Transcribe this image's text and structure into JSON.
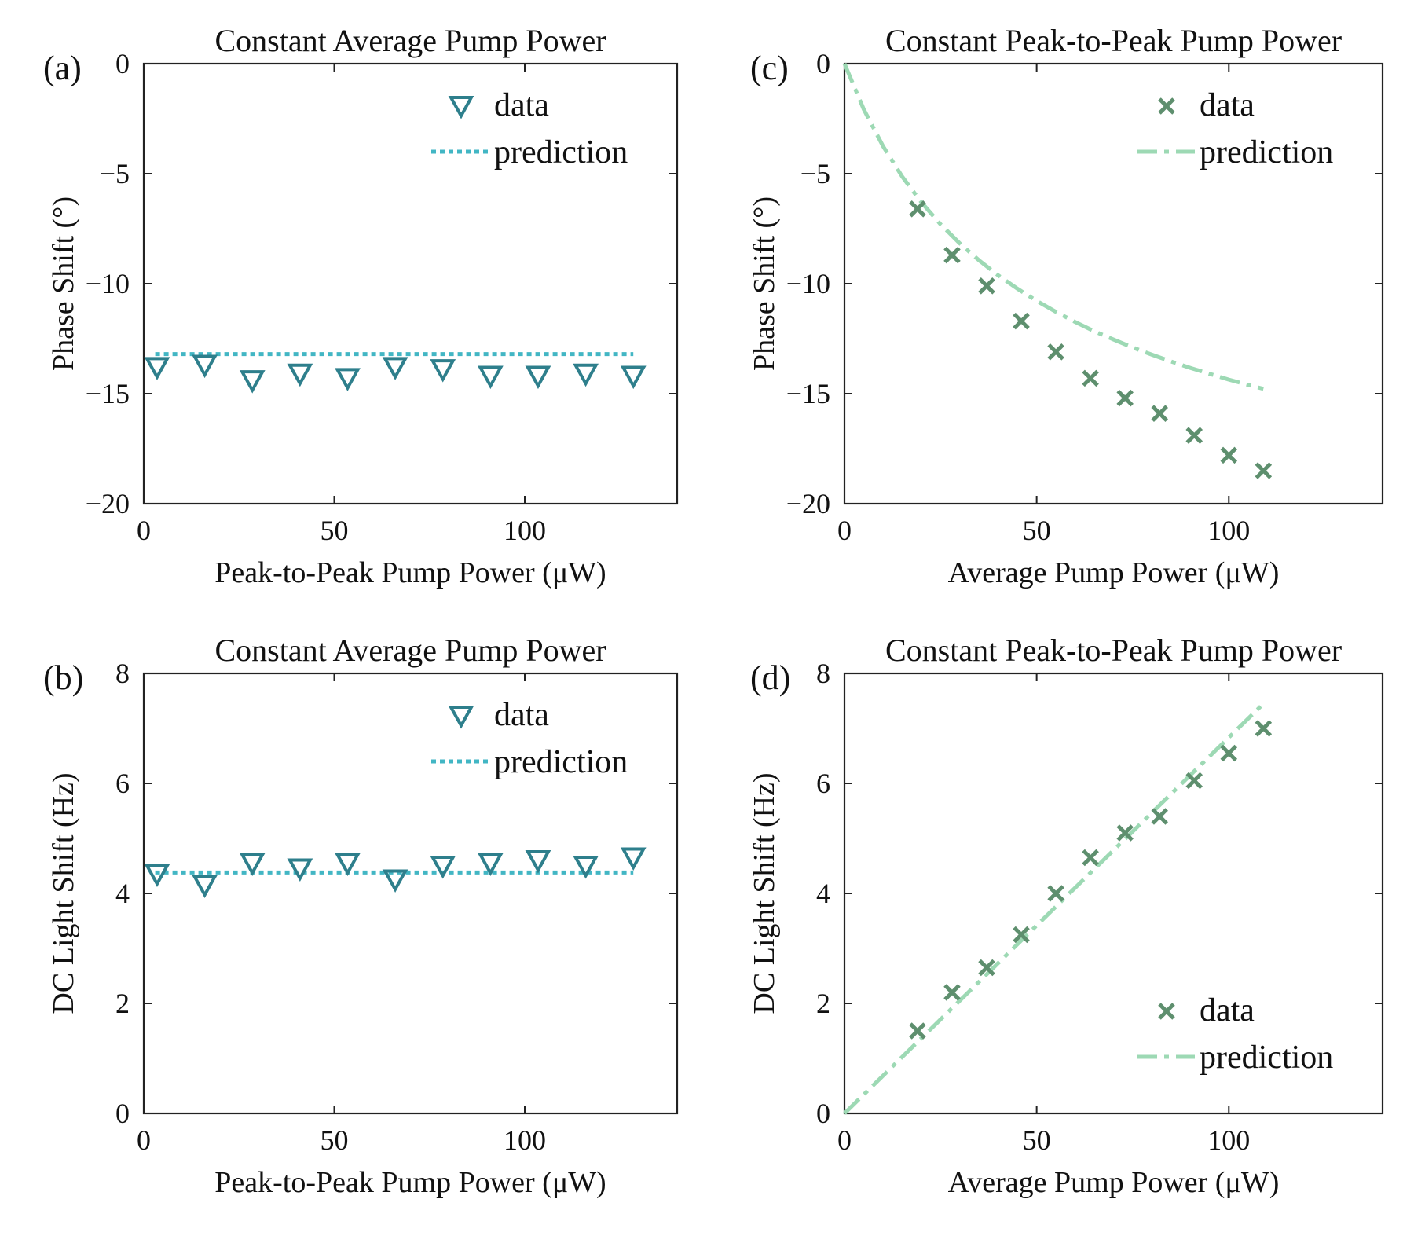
{
  "chart_data": [
    {
      "panel": "(a)",
      "type": "scatter",
      "title": "Constant Average Pump Power",
      "xlabel": "Peak-to-Peak Pump Power (μW)",
      "ylabel": "Phase Shift (°)",
      "xlim": [
        0,
        140
      ],
      "ylim": [
        -20,
        0
      ],
      "xticks": [
        0,
        50,
        100
      ],
      "yticks": [
        0,
        -5,
        -10,
        -15,
        -20
      ],
      "xtick_labels": [
        "0",
        "50",
        "100"
      ],
      "ytick_labels": [
        "0",
        "−5",
        "−10",
        "−15",
        "−20"
      ],
      "marker": "triangle-down",
      "line_style": "dotted",
      "data_color": "#2e7f8c",
      "pred_color": "#42b6c4",
      "legend": {
        "position": "top-right",
        "data_label": "data",
        "prediction_label": "prediction"
      },
      "series": [
        {
          "name": "data",
          "x": [
            3.5,
            16,
            28.5,
            41,
            53.5,
            66,
            78.5,
            91,
            103.5,
            116,
            128.5
          ],
          "y": [
            -13.8,
            -13.7,
            -14.4,
            -14.1,
            -14.3,
            -13.8,
            -13.9,
            -14.2,
            -14.2,
            -14.1,
            -14.2
          ]
        },
        {
          "name": "prediction",
          "x": [
            3,
            128.5
          ],
          "y": [
            -13.2,
            -13.2
          ]
        }
      ]
    },
    {
      "panel": "(b)",
      "type": "scatter",
      "title": "Constant Average Pump Power",
      "xlabel": "Peak-to-Peak Pump Power (μW)",
      "ylabel": "DC Light Shift (Hz)",
      "xlim": [
        0,
        140
      ],
      "ylim": [
        0,
        8
      ],
      "xticks": [
        0,
        50,
        100
      ],
      "yticks": [
        0,
        2,
        4,
        6,
        8
      ],
      "xtick_labels": [
        "0",
        "50",
        "100"
      ],
      "ytick_labels": [
        "0",
        "2",
        "4",
        "6",
        "8"
      ],
      "marker": "triangle-down",
      "line_style": "dotted",
      "data_color": "#2e7f8c",
      "pred_color": "#42b6c4",
      "legend": {
        "position": "top-right",
        "data_label": "data",
        "prediction_label": "prediction"
      },
      "series": [
        {
          "name": "data",
          "x": [
            3.5,
            16,
            28.5,
            41,
            53.5,
            66,
            78.5,
            91,
            103.5,
            116,
            128.5
          ],
          "y": [
            4.35,
            4.15,
            4.55,
            4.45,
            4.55,
            4.25,
            4.5,
            4.55,
            4.6,
            4.5,
            4.65
          ]
        },
        {
          "name": "prediction",
          "x": [
            3,
            128.5
          ],
          "y": [
            4.38,
            4.38
          ]
        }
      ]
    },
    {
      "panel": "(c)",
      "type": "scatter",
      "title": "Constant Peak-to-Peak Pump Power",
      "xlabel": "Average Pump Power (μW)",
      "ylabel": "Phase Shift (°)",
      "xlim": [
        0,
        140
      ],
      "ylim": [
        -20,
        0
      ],
      "xticks": [
        0,
        50,
        100
      ],
      "yticks": [
        0,
        -5,
        -10,
        -15,
        -20
      ],
      "xtick_labels": [
        "0",
        "50",
        "100"
      ],
      "ytick_labels": [
        "0",
        "−5",
        "−10",
        "−15",
        "−20"
      ],
      "marker": "x",
      "line_style": "dashdot",
      "data_color": "#5e8f6e",
      "pred_color": "#9dd9b4",
      "legend": {
        "position": "top-right",
        "data_label": "data",
        "prediction_label": "prediction"
      },
      "series": [
        {
          "name": "data",
          "x": [
            19,
            28,
            37,
            46,
            55,
            64,
            73,
            82,
            91,
            100,
            109
          ],
          "y": [
            -6.6,
            -8.7,
            -10.1,
            -11.7,
            -13.1,
            -14.3,
            -15.2,
            -15.9,
            -16.9,
            -17.8,
            -18.5
          ]
        },
        {
          "name": "prediction",
          "x": [
            0,
            5,
            10,
            15,
            20,
            25,
            30,
            35,
            40,
            45,
            50,
            55,
            60,
            65,
            70,
            75,
            80,
            85,
            90,
            95,
            100,
            105,
            109
          ],
          "y": [
            0,
            -2.07,
            -3.74,
            -5.13,
            -6.3,
            -7.3,
            -8.17,
            -8.94,
            -9.62,
            -10.23,
            -10.78,
            -11.28,
            -11.74,
            -12.16,
            -12.54,
            -12.9,
            -13.23,
            -13.54,
            -13.83,
            -14.1,
            -14.36,
            -14.6,
            -14.78
          ]
        }
      ]
    },
    {
      "panel": "(d)",
      "type": "scatter",
      "title": "Constant Peak-to-Peak Pump Power",
      "xlabel": "Average Pump Power (μW)",
      "ylabel": "DC Light Shift (Hz)",
      "xlim": [
        0,
        140
      ],
      "ylim": [
        0,
        8
      ],
      "xticks": [
        0,
        50,
        100
      ],
      "yticks": [
        0,
        2,
        4,
        6,
        8
      ],
      "xtick_labels": [
        "0",
        "50",
        "100"
      ],
      "ytick_labels": [
        "0",
        "2",
        "4",
        "6",
        "8"
      ],
      "marker": "x",
      "line_style": "dashdot",
      "data_color": "#5e8f6e",
      "pred_color": "#9dd9b4",
      "legend": {
        "position": "bottom-right",
        "data_label": "data",
        "prediction_label": "prediction"
      },
      "series": [
        {
          "name": "data",
          "x": [
            19,
            28,
            37,
            46,
            55,
            64,
            73,
            82,
            91,
            100,
            109
          ],
          "y": [
            1.5,
            2.2,
            2.65,
            3.25,
            4.0,
            4.65,
            5.1,
            5.4,
            6.05,
            6.55,
            7.0
          ]
        },
        {
          "name": "prediction",
          "x": [
            0,
            109
          ],
          "y": [
            0,
            7.45
          ]
        }
      ]
    }
  ]
}
